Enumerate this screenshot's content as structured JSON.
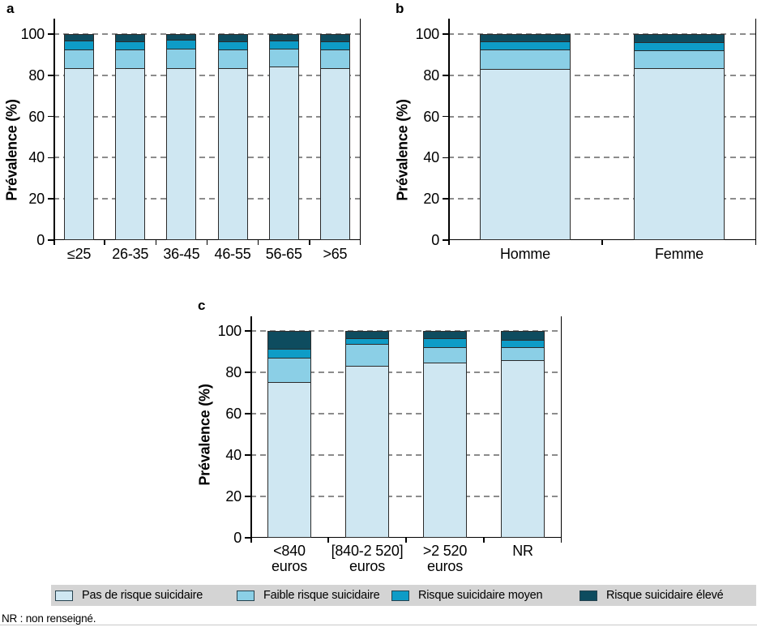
{
  "figure": {
    "panels": [
      {
        "letter": "a",
        "ylabel": "Prévalence (%)"
      },
      {
        "letter": "b",
        "ylabel": "Prévalence (%)"
      },
      {
        "letter": "c",
        "ylabel": "Prévalence (%)"
      }
    ],
    "footnote": "NR : non renseigné."
  },
  "legend": {
    "position": "bottom",
    "background": "#D4D4D4",
    "items": [
      {
        "label": "Pas de risque suicidaire",
        "color": "#CFE7F2"
      },
      {
        "label": "Faible risque suicidaire",
        "color": "#8BCFE6"
      },
      {
        "label": "Risque suicidaire moyen",
        "color": "#0E9CC7"
      },
      {
        "label": "Risque suicidaire élevé",
        "color": "#0E4C5F"
      }
    ]
  },
  "chart_data": [
    {
      "panel": "a",
      "type": "bar",
      "stacked": true,
      "unit": "%",
      "ylabel": "Prévalence (%)",
      "ylim": [
        0,
        100
      ],
      "yticks": [
        0,
        20,
        40,
        60,
        80,
        100
      ],
      "grid": "horizontal-dashed",
      "categories": [
        "≤25",
        "26-35",
        "36-45",
        "46-55",
        "56-65",
        ">65"
      ],
      "series": [
        {
          "name": "Pas de risque suicidaire",
          "color": "#CFE7F2",
          "values": [
            84.5,
            84.3,
            84.5,
            84.3,
            85.0,
            84.3
          ]
        },
        {
          "name": "Faible risque suicidaire",
          "color": "#8BCFE6",
          "values": [
            8.7,
            8.9,
            8.9,
            8.9,
            8.5,
            8.9
          ]
        },
        {
          "name": "Risque suicidaire moyen",
          "color": "#0E9CC7",
          "values": [
            3.8,
            3.5,
            4.0,
            3.5,
            3.5,
            3.4
          ]
        },
        {
          "name": "Risque suicidaire élevé",
          "color": "#0E4C5F",
          "values": [
            3.0,
            3.3,
            2.6,
            3.3,
            3.0,
            3.4
          ]
        }
      ]
    },
    {
      "panel": "b",
      "type": "bar",
      "stacked": true,
      "unit": "%",
      "ylabel": "Prévalence (%)",
      "ylim": [
        0,
        100
      ],
      "yticks": [
        0,
        20,
        40,
        60,
        80,
        100
      ],
      "grid": "horizontal-dashed",
      "categories": [
        "Homme",
        "Femme"
      ],
      "series": [
        {
          "name": "Pas de risque suicidaire",
          "color": "#CFE7F2",
          "values": [
            84.0,
            84.3
          ]
        },
        {
          "name": "Faible risque suicidaire",
          "color": "#8BCFE6",
          "values": [
            9.0,
            8.4
          ]
        },
        {
          "name": "Risque suicidaire moyen",
          "color": "#0E9CC7",
          "values": [
            3.7,
            3.6
          ]
        },
        {
          "name": "Risque suicidaire élevé",
          "color": "#0E4C5F",
          "values": [
            3.3,
            3.7
          ]
        }
      ]
    },
    {
      "panel": "c",
      "type": "bar",
      "stacked": true,
      "unit": "%",
      "ylabel": "Prévalence (%)",
      "ylim": [
        0,
        100
      ],
      "yticks": [
        0,
        20,
        40,
        60,
        80,
        100
      ],
      "grid": "horizontal-dashed",
      "categories": [
        "<840\neuros",
        "[840-2 520]\neuros",
        ">2 520\neuros",
        "NR"
      ],
      "series": [
        {
          "name": "Pas de risque suicidaire",
          "color": "#CFE7F2",
          "values": [
            76.0,
            84.0,
            85.5,
            87.0
          ]
        },
        {
          "name": "Faible risque suicidaire",
          "color": "#8BCFE6",
          "values": [
            11.5,
            10.5,
            7.5,
            6.0
          ]
        },
        {
          "name": "Risque suicidaire moyen",
          "color": "#0E9CC7",
          "values": [
            4.0,
            2.5,
            4.0,
            3.0
          ]
        },
        {
          "name": "Risque suicidaire élevé",
          "color": "#0E4C5F",
          "values": [
            8.5,
            3.0,
            3.0,
            4.0
          ]
        }
      ]
    }
  ]
}
